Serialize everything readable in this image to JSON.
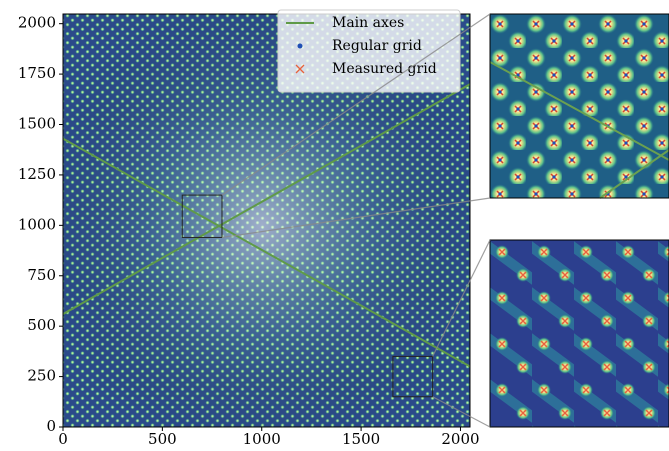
{
  "chart_data": {
    "type": "image",
    "xlim": [
      0,
      2048
    ],
    "ylim": [
      0,
      2048
    ],
    "xticks": [
      0,
      500,
      1000,
      1500,
      2000
    ],
    "yticks": [
      0,
      250,
      500,
      750,
      1000,
      1250,
      1500,
      1750,
      2000
    ],
    "main_axes": {
      "color": "#5f9a48",
      "lines": [
        {
          "x": [
            0,
            2048
          ],
          "values": [
            1430,
            300
          ]
        },
        {
          "x": [
            0,
            2048
          ],
          "values": [
            560,
            1700
          ]
        }
      ]
    },
    "legend": [
      {
        "name": "Main axes",
        "color": "#5f9a48",
        "marker": "line"
      },
      {
        "name": "Regular grid",
        "color": "#1f4fb4",
        "marker": "dot"
      },
      {
        "name": "Measured grid",
        "color": "#e8623c",
        "marker": "cross"
      }
    ],
    "insets": [
      {
        "xlim": [
          600,
          800
        ],
        "ylim": [
          940,
          1150
        ]
      },
      {
        "xlim": [
          1660,
          1860
        ],
        "ylim": [
          150,
          350
        ]
      }
    ]
  }
}
